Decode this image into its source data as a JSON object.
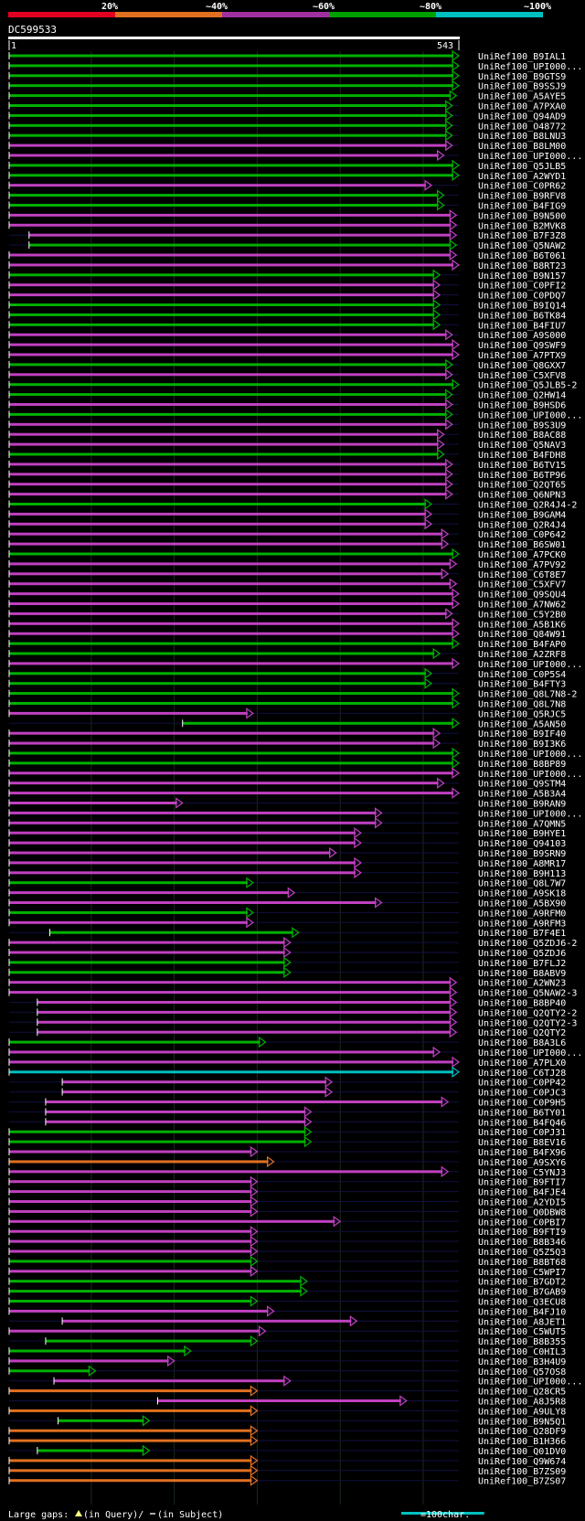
{
  "chart_data": {
    "type": "alignment-overview",
    "title": "DC599533",
    "query_start": "1",
    "query_end": "543",
    "query_length": 543,
    "legend_identity": [
      {
        "label": "20%",
        "color": "#e00020"
      },
      {
        "label": "~40%",
        "color": "#e07020"
      },
      {
        "label": "~60%",
        "color": "#a030a0"
      },
      {
        "label": "~80%",
        "color": "#00a000"
      },
      {
        "label": "~100%",
        "color": "#00c0c0"
      }
    ],
    "footer": {
      "large_gaps_label": "Large gaps:",
      "in_query_label": "(in Query)/",
      "in_subject_label": "(in Subject)",
      "scale_label": "=100char.",
      "scale_chars": 100
    },
    "hits": [
      {
        "name": "UniRef100_B9IAL1",
        "start": 1,
        "end": 543,
        "color": "green"
      },
      {
        "name": "UniRef100_UPI000...",
        "start": 1,
        "end": 543,
        "color": "green"
      },
      {
        "name": "UniRef100_B9GTS9",
        "start": 1,
        "end": 543,
        "color": "green"
      },
      {
        "name": "UniRef100_B9SSJ9",
        "start": 1,
        "end": 543,
        "color": "green"
      },
      {
        "name": "UniRef100_A5AYE5",
        "start": 1,
        "end": 540,
        "color": "green"
      },
      {
        "name": "UniRef100_A7PXA0",
        "start": 1,
        "end": 535,
        "color": "green"
      },
      {
        "name": "UniRef100_Q94AD9",
        "start": 1,
        "end": 535,
        "color": "green"
      },
      {
        "name": "UniRef100_O48772",
        "start": 1,
        "end": 535,
        "color": "green"
      },
      {
        "name": "UniRef100_B8LNU3",
        "start": 1,
        "end": 535,
        "color": "green"
      },
      {
        "name": "UniRef100_B8LM00",
        "start": 1,
        "end": 535,
        "color": "magenta"
      },
      {
        "name": "UniRef100_UPI000...",
        "start": 1,
        "end": 525,
        "color": "magenta"
      },
      {
        "name": "UniRef100_Q5JLB5",
        "start": 1,
        "end": 543,
        "color": "green"
      },
      {
        "name": "UniRef100_A2WYD1",
        "start": 1,
        "end": 543,
        "color": "green"
      },
      {
        "name": "UniRef100_C0PR62",
        "start": 1,
        "end": 510,
        "color": "magenta"
      },
      {
        "name": "UniRef100_B9RFV8",
        "start": 1,
        "end": 525,
        "color": "green"
      },
      {
        "name": "UniRef100_B4FIG9",
        "start": 1,
        "end": 525,
        "color": "green"
      },
      {
        "name": "UniRef100_B9N500",
        "start": 1,
        "end": 540,
        "color": "magenta"
      },
      {
        "name": "UniRef100_B2MVK8",
        "start": 1,
        "end": 540,
        "color": "magenta"
      },
      {
        "name": "UniRef100_B7F3Z8",
        "start": 25,
        "end": 540,
        "color": "magenta"
      },
      {
        "name": "UniRef100_Q5NAW2",
        "start": 25,
        "end": 540,
        "color": "green"
      },
      {
        "name": "UniRef100_B6T061",
        "start": 1,
        "end": 540,
        "color": "magenta"
      },
      {
        "name": "UniRef100_B8RT23",
        "start": 1,
        "end": 543,
        "color": "magenta"
      },
      {
        "name": "UniRef100_B9N157",
        "start": 1,
        "end": 520,
        "color": "green"
      },
      {
        "name": "UniRef100_C0PFI2",
        "start": 1,
        "end": 520,
        "color": "magenta"
      },
      {
        "name": "UniRef100_C0PDQ7",
        "start": 1,
        "end": 520,
        "color": "magenta"
      },
      {
        "name": "UniRef100_B9IQ14",
        "start": 1,
        "end": 520,
        "color": "green"
      },
      {
        "name": "UniRef100_B6TK84",
        "start": 1,
        "end": 520,
        "color": "green"
      },
      {
        "name": "UniRef100_B4FIU7",
        "start": 1,
        "end": 520,
        "color": "green"
      },
      {
        "name": "UniRef100_A9S000",
        "start": 1,
        "end": 535,
        "color": "magenta"
      },
      {
        "name": "UniRef100_Q9SWF9",
        "start": 1,
        "end": 543,
        "color": "magenta"
      },
      {
        "name": "UniRef100_A7PTX9",
        "start": 1,
        "end": 543,
        "color": "magenta"
      },
      {
        "name": "UniRef100_Q8GXX7",
        "start": 1,
        "end": 535,
        "color": "green"
      },
      {
        "name": "UniRef100_C5XFV8",
        "start": 1,
        "end": 535,
        "color": "magenta"
      },
      {
        "name": "UniRef100_Q5JLB5-2",
        "start": 1,
        "end": 543,
        "color": "green"
      },
      {
        "name": "UniRef100_Q2HW14",
        "start": 1,
        "end": 535,
        "color": "green"
      },
      {
        "name": "UniRef100_B9HSD6",
        "start": 1,
        "end": 535,
        "color": "magenta"
      },
      {
        "name": "UniRef100_UPI000...",
        "start": 1,
        "end": 535,
        "color": "green"
      },
      {
        "name": "UniRef100_B9S3U9",
        "start": 1,
        "end": 535,
        "color": "magenta"
      },
      {
        "name": "UniRef100_B8AC88",
        "start": 1,
        "end": 525,
        "color": "magenta"
      },
      {
        "name": "UniRef100_Q5NAV3",
        "start": 1,
        "end": 525,
        "color": "magenta"
      },
      {
        "name": "UniRef100_B4FDH8",
        "start": 1,
        "end": 525,
        "color": "green"
      },
      {
        "name": "UniRef100_B6TV15",
        "start": 1,
        "end": 535,
        "color": "magenta"
      },
      {
        "name": "UniRef100_B6TP96",
        "start": 1,
        "end": 535,
        "color": "magenta"
      },
      {
        "name": "UniRef100_Q2QT65",
        "start": 1,
        "end": 535,
        "color": "magenta"
      },
      {
        "name": "UniRef100_Q6NPN3",
        "start": 1,
        "end": 535,
        "color": "magenta"
      },
      {
        "name": "UniRef100_Q2R4J4-2",
        "start": 1,
        "end": 510,
        "color": "green"
      },
      {
        "name": "UniRef100_B9GAM4",
        "start": 1,
        "end": 510,
        "color": "magenta"
      },
      {
        "name": "UniRef100_Q2R4J4",
        "start": 1,
        "end": 510,
        "color": "magenta"
      },
      {
        "name": "UniRef100_C0P642",
        "start": 1,
        "end": 530,
        "color": "magenta"
      },
      {
        "name": "UniRef100_B6SW01",
        "start": 1,
        "end": 530,
        "color": "magenta"
      },
      {
        "name": "UniRef100_A7PCK0",
        "start": 1,
        "end": 543,
        "color": "green"
      },
      {
        "name": "UniRef100_A7PV92",
        "start": 1,
        "end": 540,
        "color": "magenta"
      },
      {
        "name": "UniRef100_C6T8E7",
        "start": 1,
        "end": 530,
        "color": "magenta"
      },
      {
        "name": "UniRef100_C5XFV7",
        "start": 1,
        "end": 540,
        "color": "magenta"
      },
      {
        "name": "UniRef100_Q9SQU4",
        "start": 1,
        "end": 543,
        "color": "magenta"
      },
      {
        "name": "UniRef100_A7NW62",
        "start": 1,
        "end": 543,
        "color": "magenta"
      },
      {
        "name": "UniRef100_C5Y2B0",
        "start": 1,
        "end": 535,
        "color": "magenta"
      },
      {
        "name": "UniRef100_A5B1K6",
        "start": 1,
        "end": 543,
        "color": "magenta"
      },
      {
        "name": "UniRef100_Q84W91",
        "start": 1,
        "end": 543,
        "color": "magenta"
      },
      {
        "name": "UniRef100_B4FAP0",
        "start": 1,
        "end": 543,
        "color": "green"
      },
      {
        "name": "UniRef100_A2ZRF8",
        "start": 1,
        "end": 520,
        "color": "green"
      },
      {
        "name": "UniRef100_UPI000...",
        "start": 1,
        "end": 543,
        "color": "magenta"
      },
      {
        "name": "UniRef100_C0P5S4",
        "start": 1,
        "end": 510,
        "color": "green"
      },
      {
        "name": "UniRef100_B4FTY3",
        "start": 1,
        "end": 510,
        "color": "green"
      },
      {
        "name": "UniRef100_Q8L7N8-2",
        "start": 1,
        "end": 543,
        "color": "green"
      },
      {
        "name": "UniRef100_Q8L7N8",
        "start": 1,
        "end": 543,
        "color": "green"
      },
      {
        "name": "UniRef100_Q5RJC5",
        "start": 1,
        "end": 295,
        "color": "magenta"
      },
      {
        "name": "UniRef100_A5AN50",
        "start": 210,
        "end": 543,
        "color": "green"
      },
      {
        "name": "UniRef100_B9IF40",
        "start": 1,
        "end": 520,
        "color": "magenta"
      },
      {
        "name": "UniRef100_B9I3K6",
        "start": 1,
        "end": 520,
        "color": "magenta"
      },
      {
        "name": "UniRef100_UPI000...",
        "start": 1,
        "end": 543,
        "color": "green"
      },
      {
        "name": "UniRef100_B8BP89",
        "start": 1,
        "end": 543,
        "color": "green"
      },
      {
        "name": "UniRef100_UPI000...",
        "start": 1,
        "end": 543,
        "color": "magenta"
      },
      {
        "name": "UniRef100_Q9STM4",
        "start": 1,
        "end": 525,
        "color": "magenta"
      },
      {
        "name": "UniRef100_A5B3A4",
        "start": 1,
        "end": 543,
        "color": "magenta"
      },
      {
        "name": "UniRef100_B9RAN9",
        "start": 1,
        "end": 210,
        "color": "magenta"
      },
      {
        "name": "UniRef100_UPI000...",
        "start": 1,
        "end": 450,
        "color": "magenta"
      },
      {
        "name": "UniRef100_A7QMN5",
        "start": 1,
        "end": 450,
        "color": "magenta"
      },
      {
        "name": "UniRef100_B9HYE1",
        "start": 1,
        "end": 425,
        "color": "magenta"
      },
      {
        "name": "UniRef100_Q94103",
        "start": 1,
        "end": 425,
        "color": "magenta"
      },
      {
        "name": "UniRef100_B9SRN9",
        "start": 1,
        "end": 395,
        "color": "magenta"
      },
      {
        "name": "UniRef100_A8MR17",
        "start": 1,
        "end": 425,
        "color": "magenta"
      },
      {
        "name": "UniRef100_B9H113",
        "start": 1,
        "end": 425,
        "color": "magenta"
      },
      {
        "name": "UniRef100_Q8L7W7",
        "start": 1,
        "end": 295,
        "color": "green"
      },
      {
        "name": "UniRef100_A9SK18",
        "start": 1,
        "end": 345,
        "color": "magenta"
      },
      {
        "name": "UniRef100_A5BX90",
        "start": 1,
        "end": 450,
        "color": "magenta"
      },
      {
        "name": "UniRef100_A9RFM0",
        "start": 1,
        "end": 295,
        "color": "green"
      },
      {
        "name": "UniRef100_A9RFM3",
        "start": 1,
        "end": 295,
        "color": "magenta"
      },
      {
        "name": "UniRef100_B7F4E1",
        "start": 50,
        "end": 350,
        "color": "green"
      },
      {
        "name": "UniRef100_Q5ZDJ6-2",
        "start": 1,
        "end": 340,
        "color": "magenta"
      },
      {
        "name": "UniRef100_Q5ZDJ6",
        "start": 1,
        "end": 340,
        "color": "magenta"
      },
      {
        "name": "UniRef100_B7FLJ2",
        "start": 1,
        "end": 340,
        "color": "green"
      },
      {
        "name": "UniRef100_B8ABV9",
        "start": 1,
        "end": 340,
        "color": "green"
      },
      {
        "name": "UniRef100_A2WN23",
        "start": 1,
        "end": 540,
        "color": "magenta"
      },
      {
        "name": "UniRef100_Q5NAW2-3",
        "start": 1,
        "end": 540,
        "color": "magenta"
      },
      {
        "name": "UniRef100_B8BP40",
        "start": 35,
        "end": 540,
        "color": "magenta"
      },
      {
        "name": "UniRef100_Q2QTY2-2",
        "start": 35,
        "end": 540,
        "color": "magenta"
      },
      {
        "name": "UniRef100_Q2QTY2-3",
        "start": 35,
        "end": 540,
        "color": "magenta"
      },
      {
        "name": "UniRef100_Q2QTY2",
        "start": 35,
        "end": 540,
        "color": "magenta"
      },
      {
        "name": "UniRef100_B8A3L6",
        "start": 1,
        "end": 310,
        "color": "green"
      },
      {
        "name": "UniRef100_UPI000...",
        "start": 1,
        "end": 520,
        "color": "magenta"
      },
      {
        "name": "UniRef100_A7PLX0",
        "start": 1,
        "end": 543,
        "color": "magenta"
      },
      {
        "name": "UniRef100_C6TJ28",
        "start": 1,
        "end": 543,
        "color": "cyan"
      },
      {
        "name": "UniRef100_C0PP42",
        "start": 65,
        "end": 390,
        "color": "magenta"
      },
      {
        "name": "UniRef100_C0PJC3",
        "start": 65,
        "end": 390,
        "color": "magenta"
      },
      {
        "name": "UniRef100_C0P9H5",
        "start": 45,
        "end": 530,
        "color": "magenta"
      },
      {
        "name": "UniRef100_B6TY01",
        "start": 45,
        "end": 365,
        "color": "magenta"
      },
      {
        "name": "UniRef100_B4FQ46",
        "start": 45,
        "end": 365,
        "color": "magenta"
      },
      {
        "name": "UniRef100_C0PJ31",
        "start": 1,
        "end": 365,
        "color": "green"
      },
      {
        "name": "UniRef100_B8EV16",
        "start": 1,
        "end": 365,
        "color": "green"
      },
      {
        "name": "UniRef100_B4FX96",
        "start": 1,
        "end": 300,
        "color": "magenta"
      },
      {
        "name": "UniRef100_A9SXY6",
        "start": 1,
        "end": 320,
        "color": "orange"
      },
      {
        "name": "UniRef100_C5YNJ3",
        "start": 1,
        "end": 530,
        "color": "magenta"
      },
      {
        "name": "UniRef100_B9FTI7",
        "start": 1,
        "end": 300,
        "color": "magenta"
      },
      {
        "name": "UniRef100_B4FJE4",
        "start": 1,
        "end": 300,
        "color": "magenta"
      },
      {
        "name": "UniRef100_A2YDI5",
        "start": 1,
        "end": 300,
        "color": "magenta"
      },
      {
        "name": "UniRef100_Q0DBW8",
        "start": 1,
        "end": 300,
        "color": "magenta"
      },
      {
        "name": "UniRef100_C0PBI7",
        "start": 1,
        "end": 400,
        "color": "magenta"
      },
      {
        "name": "UniRef100_B9FTI9",
        "start": 1,
        "end": 300,
        "color": "magenta"
      },
      {
        "name": "UniRef100_B8B346",
        "start": 1,
        "end": 300,
        "color": "magenta"
      },
      {
        "name": "UniRef100_Q5Z5Q3",
        "start": 1,
        "end": 300,
        "color": "magenta"
      },
      {
        "name": "UniRef100_B8BT68",
        "start": 1,
        "end": 300,
        "color": "green"
      },
      {
        "name": "UniRef100_C5WPI7",
        "start": 1,
        "end": 300,
        "color": "magenta"
      },
      {
        "name": "UniRef100_B7GDT2",
        "start": 1,
        "end": 360,
        "color": "green"
      },
      {
        "name": "UniRef100_B7GAB9",
        "start": 1,
        "end": 360,
        "color": "green"
      },
      {
        "name": "UniRef100_Q3ECU8",
        "start": 1,
        "end": 300,
        "color": "green"
      },
      {
        "name": "UniRef100_B4FJ10",
        "start": 1,
        "end": 320,
        "color": "magenta"
      },
      {
        "name": "UniRef100_A8JET1",
        "start": 65,
        "end": 420,
        "color": "magenta"
      },
      {
        "name": "UniRef100_C5WUT5",
        "start": 1,
        "end": 310,
        "color": "magenta"
      },
      {
        "name": "UniRef100_B8B355",
        "start": 45,
        "end": 300,
        "color": "green"
      },
      {
        "name": "UniRef100_C0HIL3",
        "start": 1,
        "end": 220,
        "color": "green"
      },
      {
        "name": "UniRef100_B3H4U9",
        "start": 1,
        "end": 200,
        "color": "magenta"
      },
      {
        "name": "UniRef100_Q57OS8",
        "start": 1,
        "end": 105,
        "color": "green"
      },
      {
        "name": "UniRef100_UPI000...",
        "start": 55,
        "end": 340,
        "color": "magenta"
      },
      {
        "name": "UniRef100_Q28CR5",
        "start": 1,
        "end": 300,
        "color": "orange"
      },
      {
        "name": "UniRef100_A8J5R8",
        "start": 180,
        "end": 480,
        "color": "magenta"
      },
      {
        "name": "UniRef100_A9ULY8",
        "start": 1,
        "end": 300,
        "color": "orange"
      },
      {
        "name": "UniRef100_B9N5Q1",
        "start": 60,
        "end": 170,
        "color": "green"
      },
      {
        "name": "UniRef100_Q28DF9",
        "start": 1,
        "end": 300,
        "color": "orange"
      },
      {
        "name": "UniRef100_B1H366",
        "start": 1,
        "end": 300,
        "color": "orange"
      },
      {
        "name": "UniRef100_Q01DV0",
        "start": 35,
        "end": 170,
        "color": "green"
      },
      {
        "name": "UniRef100_Q9W674",
        "start": 1,
        "end": 300,
        "color": "orange"
      },
      {
        "name": "UniRef100_B7ZS09",
        "start": 1,
        "end": 300,
        "color": "orange"
      },
      {
        "name": "UniRef100_B7ZS07",
        "start": 1,
        "end": 300,
        "color": "orange"
      }
    ]
  }
}
